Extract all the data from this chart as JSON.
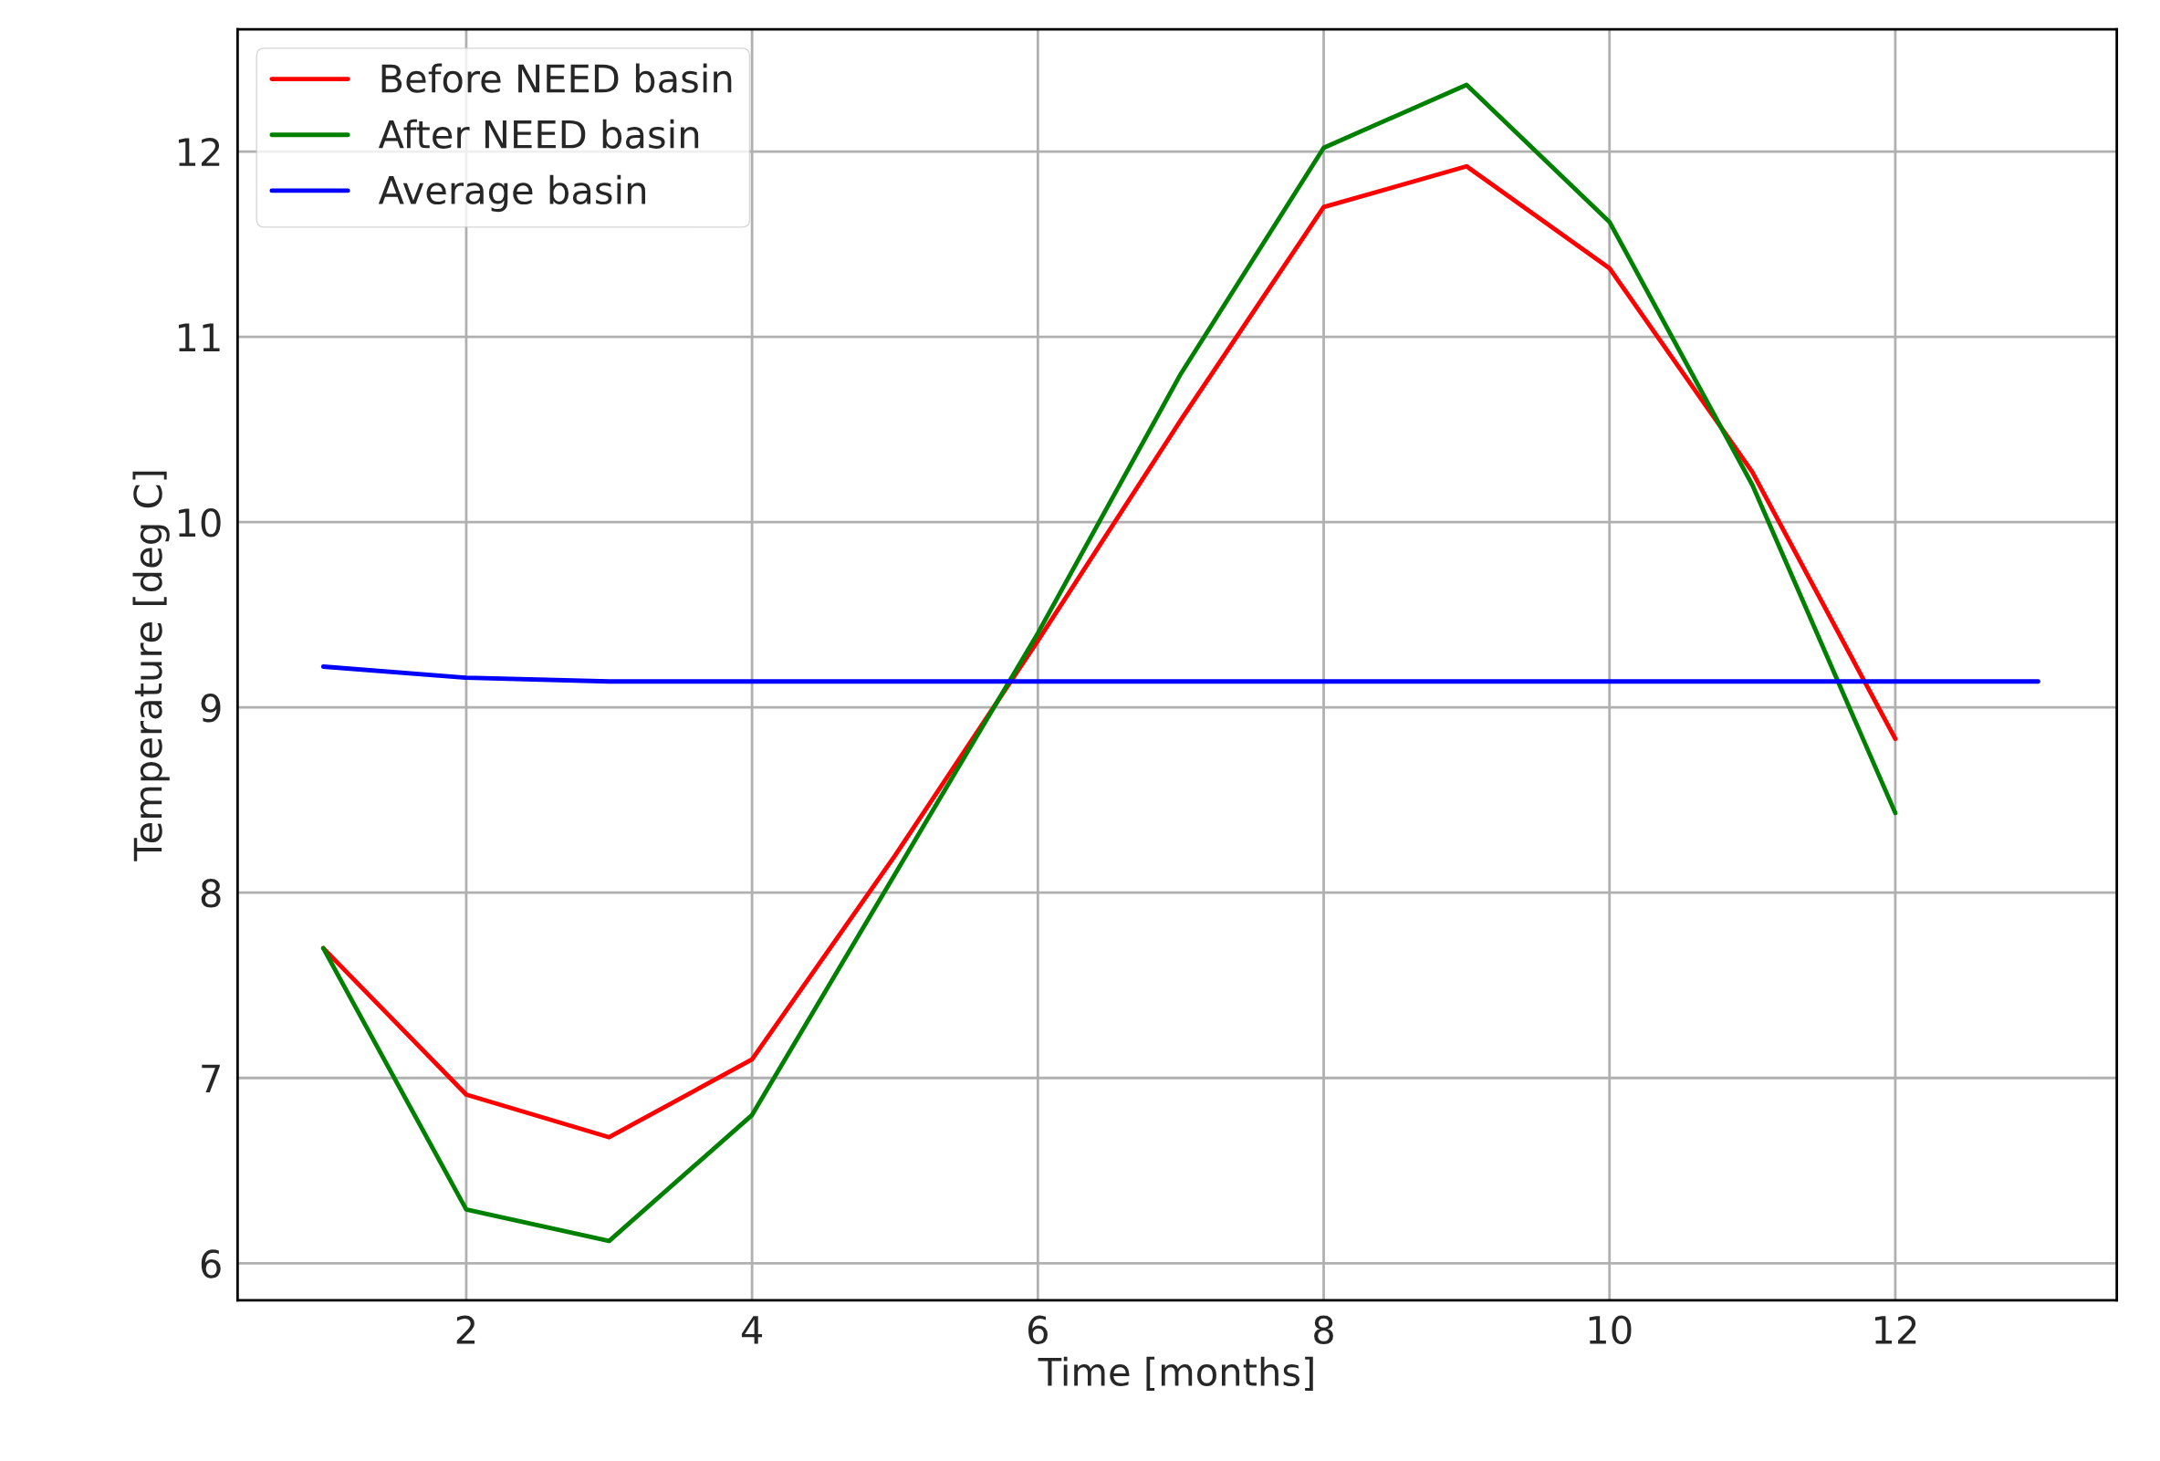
{
  "chart_data": {
    "type": "line",
    "xlabel": "Time [months]",
    "ylabel": "Temperature [deg C]",
    "xlim": [
      0.4,
      13.55
    ],
    "xticks": [
      2,
      4,
      6,
      8,
      10,
      12
    ],
    "ylim": [
      5.8,
      12.66
    ],
    "yticks": [
      6,
      7,
      8,
      9,
      10,
      11,
      12
    ],
    "grid": true,
    "legend": "top left",
    "line_style": "solid",
    "marker": "none",
    "series": [
      {
        "name": "Before NEED basin",
        "color": "#ff0000",
        "x": [
          1,
          2,
          3,
          4,
          5,
          6,
          7,
          8,
          9,
          10,
          11,
          12
        ],
        "values": [
          7.7,
          6.91,
          6.68,
          7.1,
          8.2,
          9.36,
          10.55,
          11.7,
          11.92,
          11.37,
          10.27,
          8.83
        ]
      },
      {
        "name": "After NEED basin",
        "color": "#008000",
        "x": [
          1,
          2,
          3,
          4,
          5,
          6,
          7,
          8,
          9,
          10,
          11,
          12
        ],
        "values": [
          7.7,
          6.29,
          6.12,
          6.8,
          8.1,
          9.4,
          10.8,
          12.02,
          12.36,
          11.62,
          10.2,
          8.43
        ]
      },
      {
        "name": "Average basin",
        "color": "#0000ff",
        "x": [
          1,
          2,
          3,
          4,
          5,
          6,
          7,
          8,
          9,
          10,
          11,
          12,
          13
        ],
        "values": [
          9.22,
          9.16,
          9.14,
          9.14,
          9.14,
          9.14,
          9.14,
          9.14,
          9.14,
          9.14,
          9.14,
          9.14,
          9.14
        ]
      }
    ]
  }
}
